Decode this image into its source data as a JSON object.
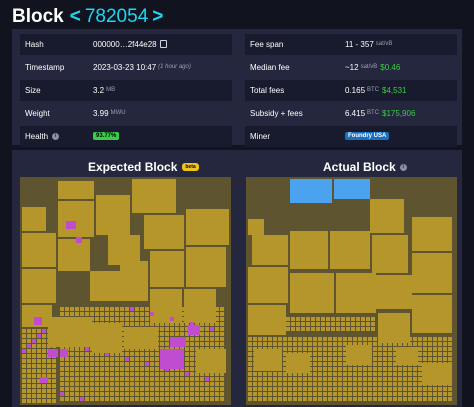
{
  "header": {
    "title": "Block",
    "prev_chevron": "<",
    "height": "782054",
    "next_chevron": ">"
  },
  "details_left": [
    {
      "key": "Hash",
      "value": "000000…2f44e28",
      "kind": "hash"
    },
    {
      "key": "Timestamp",
      "value": "2023-03-23 10:47",
      "note": "(1 hour ago)",
      "kind": "time"
    },
    {
      "key": "Size",
      "value": "3.2",
      "unit": "MB",
      "kind": "unit"
    },
    {
      "key": "Weight",
      "value": "3.99",
      "unit": "MWU",
      "kind": "unit"
    },
    {
      "key": "Health",
      "value": "93.77%",
      "kind": "badge"
    }
  ],
  "details_right": [
    {
      "key": "Fee span",
      "value": "11 - 357",
      "unit": "sat/vB"
    },
    {
      "key": "Median fee",
      "value": "~12",
      "unit": "sat/vB",
      "fiat": "$0.46"
    },
    {
      "key": "Total fees",
      "value": "0.165",
      "unit": "BTC",
      "fiat": "$4,531"
    },
    {
      "key": "Subsidy + fees",
      "value": "6.415",
      "unit": "BTC",
      "fiat": "$175,906"
    },
    {
      "key": "Miner",
      "value": "Foundry USA"
    }
  ],
  "expected": {
    "title": "Expected Block",
    "badge": "beta"
  },
  "actual": {
    "title": "Actual Block"
  },
  "colors": {
    "accent": "#1bd8f4",
    "bg": "#11131f",
    "panel": "#24273e",
    "tx": "#b5962a",
    "tx_dark": "#5e5430",
    "missing": "#c04ccf",
    "added": "#4ba3f0",
    "health": "#3bcc49"
  }
}
